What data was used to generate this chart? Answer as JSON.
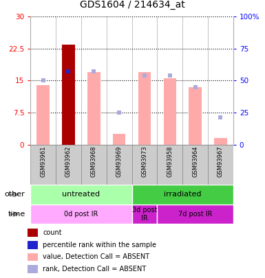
{
  "title": "GDS1604 / 214634_at",
  "samples": [
    "GSM93961",
    "GSM93962",
    "GSM93968",
    "GSM93969",
    "GSM93973",
    "GSM93958",
    "GSM93964",
    "GSM93967"
  ],
  "ylim_left": [
    0,
    30
  ],
  "ylim_right": [
    0,
    100
  ],
  "yticks_left": [
    0,
    7.5,
    15,
    22.5,
    30
  ],
  "yticks_right": [
    0,
    25,
    50,
    75,
    100
  ],
  "ytick_labels_right": [
    "0",
    "25",
    "50",
    "75",
    "100%"
  ],
  "value_bars": [
    14,
    23.5,
    17,
    2.5,
    17,
    15.5,
    13.5,
    1.5
  ],
  "rank_bars": [
    50,
    57,
    57,
    25,
    54,
    54,
    45,
    21
  ],
  "count_bar_idx": 1,
  "bar_colors": {
    "count": "#aa0000",
    "percentile_rank": "#2222cc",
    "value_absent": "#ffaaaa",
    "rank_absent": "#aaaadd"
  },
  "groups_other": [
    {
      "label": "untreated",
      "start": 0,
      "end": 4,
      "color": "#aaffaa"
    },
    {
      "label": "irradiated",
      "start": 4,
      "end": 8,
      "color": "#44cc44"
    }
  ],
  "groups_time": [
    {
      "label": "0d post IR",
      "start": 0,
      "end": 4,
      "color": "#ffaaff"
    },
    {
      "label": "3d post\nIR",
      "start": 4,
      "end": 5,
      "color": "#cc22cc"
    },
    {
      "label": "7d post IR",
      "start": 5,
      "end": 8,
      "color": "#cc22cc"
    }
  ],
  "legend_items": [
    {
      "color": "#aa0000",
      "label": "count"
    },
    {
      "color": "#2222cc",
      "label": "percentile rank within the sample"
    },
    {
      "color": "#ffaaaa",
      "label": "value, Detection Call = ABSENT"
    },
    {
      "color": "#aaaadd",
      "label": "rank, Detection Call = ABSENT"
    }
  ],
  "bar_width": 0.5
}
